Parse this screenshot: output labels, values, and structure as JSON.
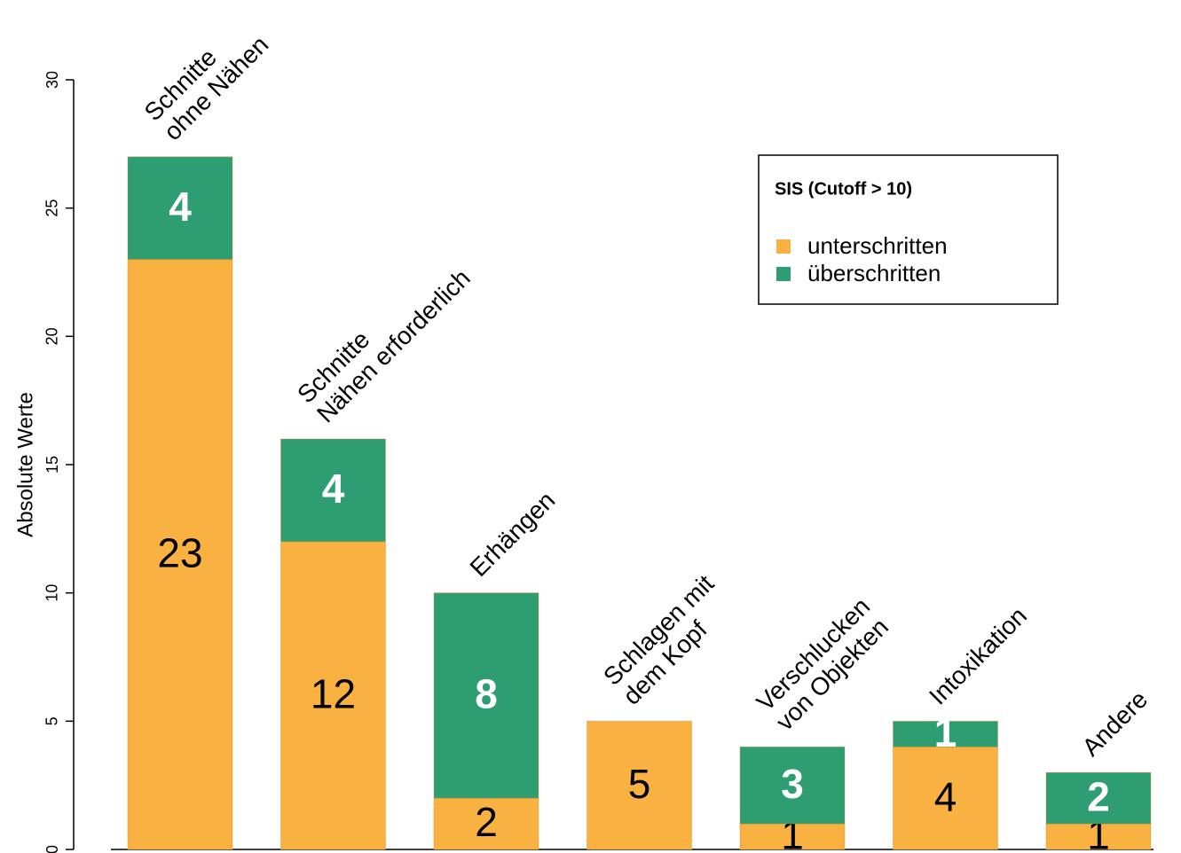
{
  "chart_data": {
    "type": "stacked_bar",
    "y_label": "Absolute Werte",
    "categories": [
      [
        "Schnitte",
        "ohne Nähen"
      ],
      [
        "Schnitte",
        "Nähen erforderlich"
      ],
      [
        "Erhängen"
      ],
      [
        "Schlagen mit",
        "dem Kopf"
      ],
      [
        "Verschlucken",
        "von Objekten"
      ],
      [
        "Intoxikation"
      ],
      [
        "Andere"
      ]
    ],
    "series": [
      {
        "name": "unterschritten",
        "color": "#f9b241",
        "values": [
          23,
          12,
          2,
          5,
          1,
          4,
          1
        ]
      },
      {
        "name": "überschritten",
        "color": "#2e9e72",
        "values": [
          4,
          4,
          8,
          0,
          3,
          1,
          2
        ]
      }
    ],
    "legend_title": "SIS (Cutoff > 10)",
    "legend_position": "upper right",
    "ylim": [
      0,
      30
    ],
    "yticks": [
      0,
      5,
      10,
      15,
      20,
      25,
      30
    ]
  }
}
